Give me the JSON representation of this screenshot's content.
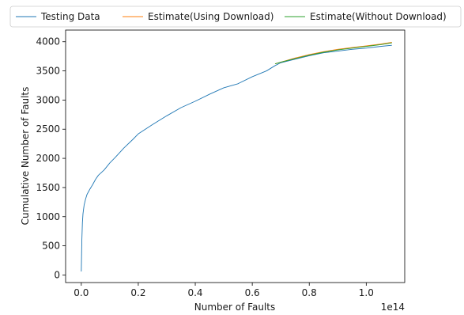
{
  "chart_data": {
    "type": "line",
    "xlabel": "Number of Faults",
    "ylabel": "Cumulative Number of Faults",
    "x_offset_label": "1e14",
    "xlim": [
      -0.055,
      1.135
    ],
    "ylim": [
      -130,
      4200
    ],
    "x_ticks": [
      0.0,
      0.2,
      0.4,
      0.6,
      0.8,
      1.0
    ],
    "x_tick_labels": [
      "0.0",
      "0.2",
      "0.4",
      "0.6",
      "0.8",
      "1.0"
    ],
    "y_ticks": [
      0,
      500,
      1000,
      1500,
      2000,
      2500,
      3000,
      3500,
      4000
    ],
    "y_tick_labels": [
      "0",
      "500",
      "1000",
      "1500",
      "2000",
      "2500",
      "3000",
      "3500",
      "4000"
    ],
    "grid": false,
    "legend_placement": "top, outside, one row",
    "series": [
      {
        "name": "Testing Data",
        "color": "#1f77b4",
        "x": [
          0.0,
          0.002,
          0.004,
          0.006,
          0.01,
          0.015,
          0.02,
          0.03,
          0.04,
          0.05,
          0.06,
          0.08,
          0.1,
          0.12,
          0.15,
          0.18,
          0.2,
          0.25,
          0.3,
          0.35,
          0.4,
          0.45,
          0.5,
          0.55,
          0.6,
          0.65,
          0.68,
          0.7,
          0.75,
          0.8,
          0.85,
          0.9,
          0.95,
          1.0,
          1.05,
          1.09
        ],
        "y": [
          60,
          600,
          900,
          1050,
          1200,
          1300,
          1380,
          1470,
          1550,
          1640,
          1710,
          1800,
          1920,
          2020,
          2180,
          2320,
          2420,
          2580,
          2730,
          2870,
          2980,
          3100,
          3210,
          3280,
          3400,
          3500,
          3590,
          3640,
          3700,
          3760,
          3810,
          3840,
          3870,
          3890,
          3920,
          3940
        ]
      },
      {
        "name": "Estimate(Using Download)",
        "color": "#ff7f0e",
        "x": [
          0.68,
          0.7,
          0.75,
          0.8,
          0.85,
          0.9,
          0.95,
          1.0,
          1.05,
          1.09
        ],
        "y": [
          3620,
          3650,
          3720,
          3780,
          3830,
          3870,
          3900,
          3930,
          3960,
          3990
        ]
      },
      {
        "name": "Estimate(Without Download)",
        "color": "#2ca02c",
        "x": [
          0.68,
          0.7,
          0.75,
          0.8,
          0.85,
          0.9,
          0.95,
          1.0,
          1.05,
          1.09
        ],
        "y": [
          3620,
          3650,
          3710,
          3770,
          3820,
          3860,
          3890,
          3920,
          3950,
          3980
        ]
      }
    ]
  }
}
